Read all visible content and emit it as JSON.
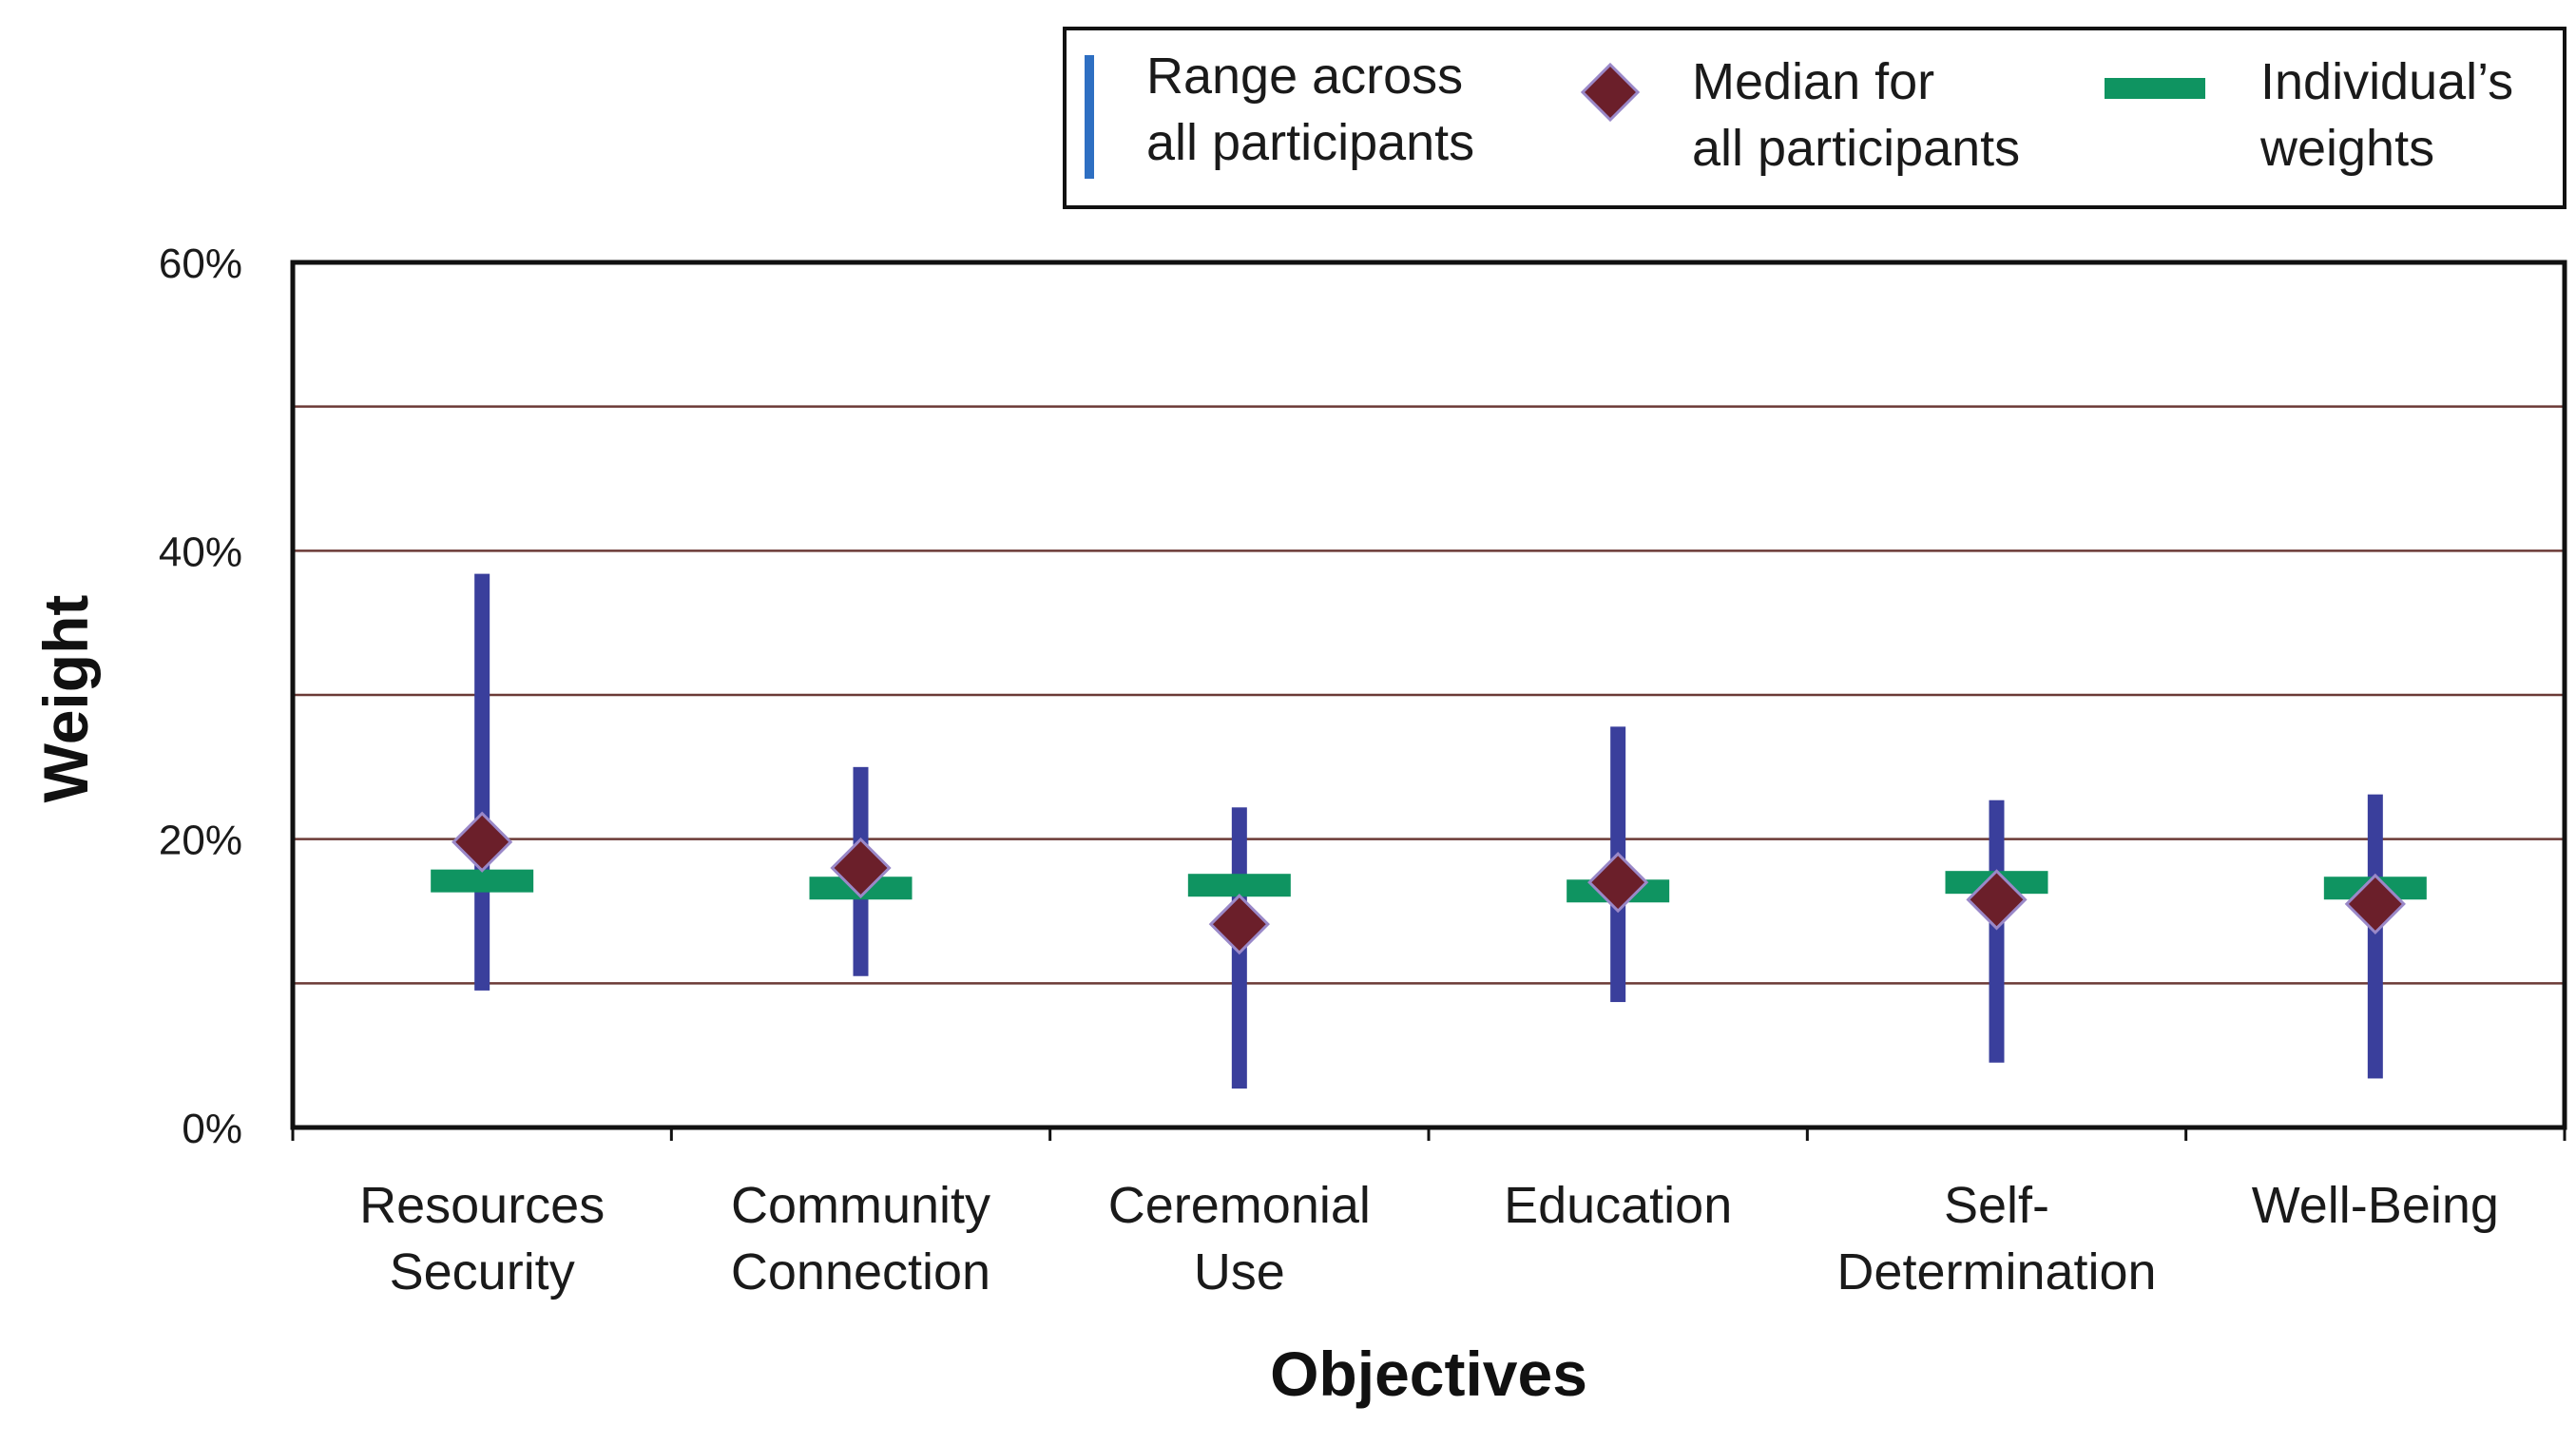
{
  "chart_data": {
    "type": "range-with-median",
    "xlabel": "Objectives",
    "ylabel": "Weight",
    "ylim": [
      0,
      60
    ],
    "yticks": [
      {
        "value": 0,
        "label": "0%"
      },
      {
        "value": 20,
        "label": "20%"
      },
      {
        "value": 40,
        "label": "40%"
      },
      {
        "value": 60,
        "label": "60%"
      }
    ],
    "gridlines": [
      10,
      20,
      30,
      40,
      50
    ],
    "grid": true,
    "categories": [
      {
        "lines": [
          "Resources",
          "Security"
        ]
      },
      {
        "lines": [
          "Community",
          "Connection"
        ]
      },
      {
        "lines": [
          "Ceremonial",
          "Use"
        ]
      },
      {
        "lines": [
          "Education"
        ]
      },
      {
        "lines": [
          "Self-",
          "Determination"
        ]
      },
      {
        "lines": [
          "Well-Being"
        ]
      }
    ],
    "series": [
      {
        "name": "Range across all participants",
        "low": [
          9.5,
          10.5,
          2.7,
          8.7,
          4.5,
          3.4
        ],
        "high": [
          38.4,
          25.0,
          22.2,
          27.8,
          22.7,
          23.1
        ]
      },
      {
        "name": "Median for all participants",
        "values": [
          19.8,
          18.0,
          14.1,
          17.0,
          15.8,
          15.5
        ]
      },
      {
        "name": "Individual's weights",
        "values": [
          17.1,
          16.6,
          16.8,
          16.4,
          17.0,
          16.6
        ]
      }
    ],
    "legend": {
      "position": "top-right",
      "items": [
        {
          "key": "range",
          "lines": [
            "Range across",
            "all participants"
          ]
        },
        {
          "key": "median",
          "lines": [
            "Median for",
            "all participants"
          ]
        },
        {
          "key": "individual",
          "lines": [
            "Individual’s",
            "weights"
          ]
        }
      ]
    },
    "colors": {
      "range": "#3a3f9c",
      "median": "#6b1f2a",
      "median_edge": "#9a88c8",
      "individual": "#0f9461",
      "gridline": "#6b3a36",
      "axis": "#111111",
      "legend_range": "#2e6fc2"
    }
  }
}
